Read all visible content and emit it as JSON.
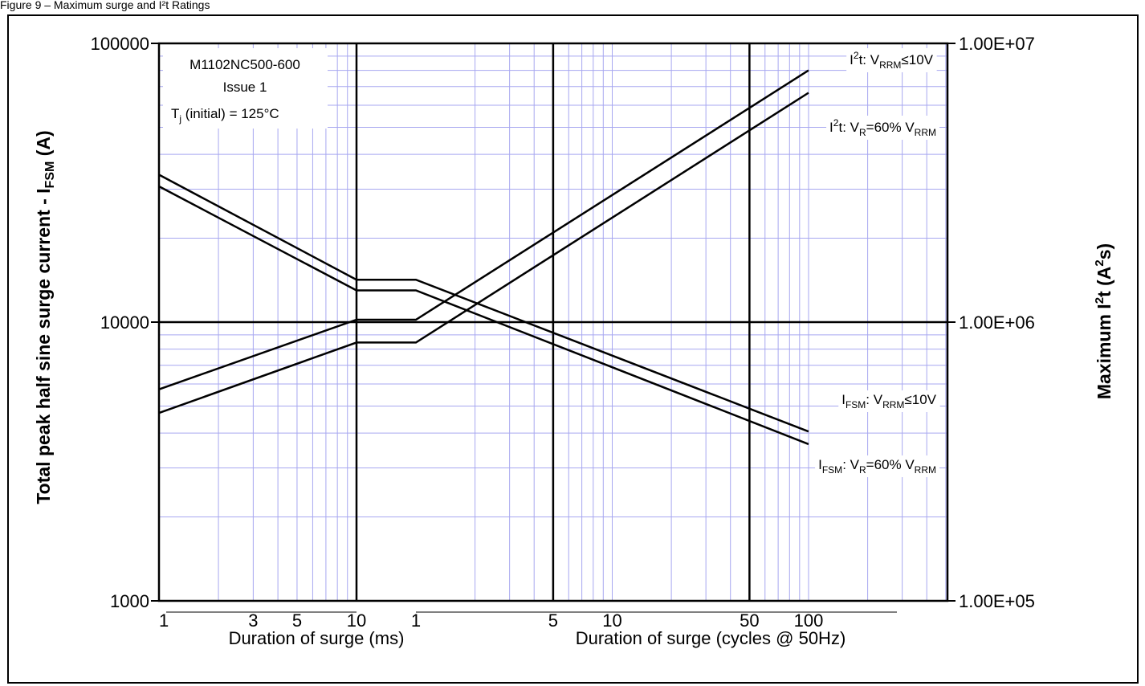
{
  "page_caption": "Figure 9 – Maximum surge and I²t Ratings",
  "chart_data": {
    "type": "line",
    "y_scale": "log",
    "y2_scale": "log",
    "x_scale": "log",
    "grid": true,
    "ylim": [
      1000,
      100000
    ],
    "y2lim": [
      100000,
      10000000
    ],
    "ylabel": {
      "main": "Total peak half sine surge current - I",
      "sub": "FSM",
      "tail": " (A)"
    },
    "y2label": {
      "main": "Maximum I",
      "sup": "2",
      "tail": "t (A",
      "sup2": "2",
      "tail2": "s)"
    },
    "y_ticks": [
      "1000",
      "10000",
      "100000"
    ],
    "y2_ticks": [
      "1.00E+05",
      "1.00E+06",
      "1.00E+07"
    ],
    "x_segments": [
      {
        "unit": "ms",
        "range": [
          1,
          10
        ],
        "tick_labels": [
          "1",
          "3",
          "5",
          "10"
        ],
        "label": "Duration of surge (ms)"
      },
      {
        "unit": "cycles @ 50Hz",
        "range": [
          1,
          100
        ],
        "tick_labels": [
          "1",
          "5",
          "10",
          "50",
          "100"
        ],
        "label": "Duration of surge (cycles @ 50Hz)"
      }
    ],
    "info_box": {
      "line1": "M1102NC500-600",
      "line2": "Issue 1",
      "line3_pre": "T",
      "line3_sub": "j",
      "line3_post": " (initial) = 125°C"
    },
    "series": [
      {
        "axis": "left",
        "label_parts": [
          [
            "I",
            ""
          ],
          [
            "FSM",
            "sub"
          ],
          [
            ": V",
            ""
          ],
          [
            "RRM",
            "sub"
          ],
          [
            "≤10V",
            ""
          ]
        ],
        "ms": [
          [
            1,
            33800
          ],
          [
            10,
            14200
          ]
        ],
        "cycles": [
          [
            1,
            14200
          ],
          [
            100,
            4050
          ]
        ]
      },
      {
        "axis": "left",
        "label_parts": [
          [
            "I",
            ""
          ],
          [
            "FSM",
            "sub"
          ],
          [
            ": V",
            ""
          ],
          [
            "R",
            "sub"
          ],
          [
            "=60% V",
            ""
          ],
          [
            "RRM",
            "sub"
          ]
        ],
        "ms": [
          [
            1,
            30700
          ],
          [
            10,
            13000
          ]
        ],
        "cycles": [
          [
            1,
            13000
          ],
          [
            100,
            3650
          ]
        ]
      },
      {
        "axis": "right",
        "label_parts": [
          [
            "I",
            ""
          ],
          [
            "2",
            "sup"
          ],
          [
            "t: V",
            ""
          ],
          [
            "RRM",
            "sub"
          ],
          [
            "≤10V",
            ""
          ]
        ],
        "ms": [
          [
            1,
            574000
          ],
          [
            10,
            1020000
          ]
        ],
        "cycles": [
          [
            1,
            1020000
          ],
          [
            100,
            8000000
          ]
        ]
      },
      {
        "axis": "right",
        "label_parts": [
          [
            "I",
            ""
          ],
          [
            "2",
            "sup"
          ],
          [
            "t: V",
            ""
          ],
          [
            "R",
            "sub"
          ],
          [
            "=60% V",
            ""
          ],
          [
            "RRM",
            "sub"
          ]
        ],
        "ms": [
          [
            1,
            472000
          ],
          [
            10,
            845000
          ]
        ],
        "cycles": [
          [
            1,
            845000
          ],
          [
            100,
            6650000
          ]
        ]
      }
    ]
  }
}
